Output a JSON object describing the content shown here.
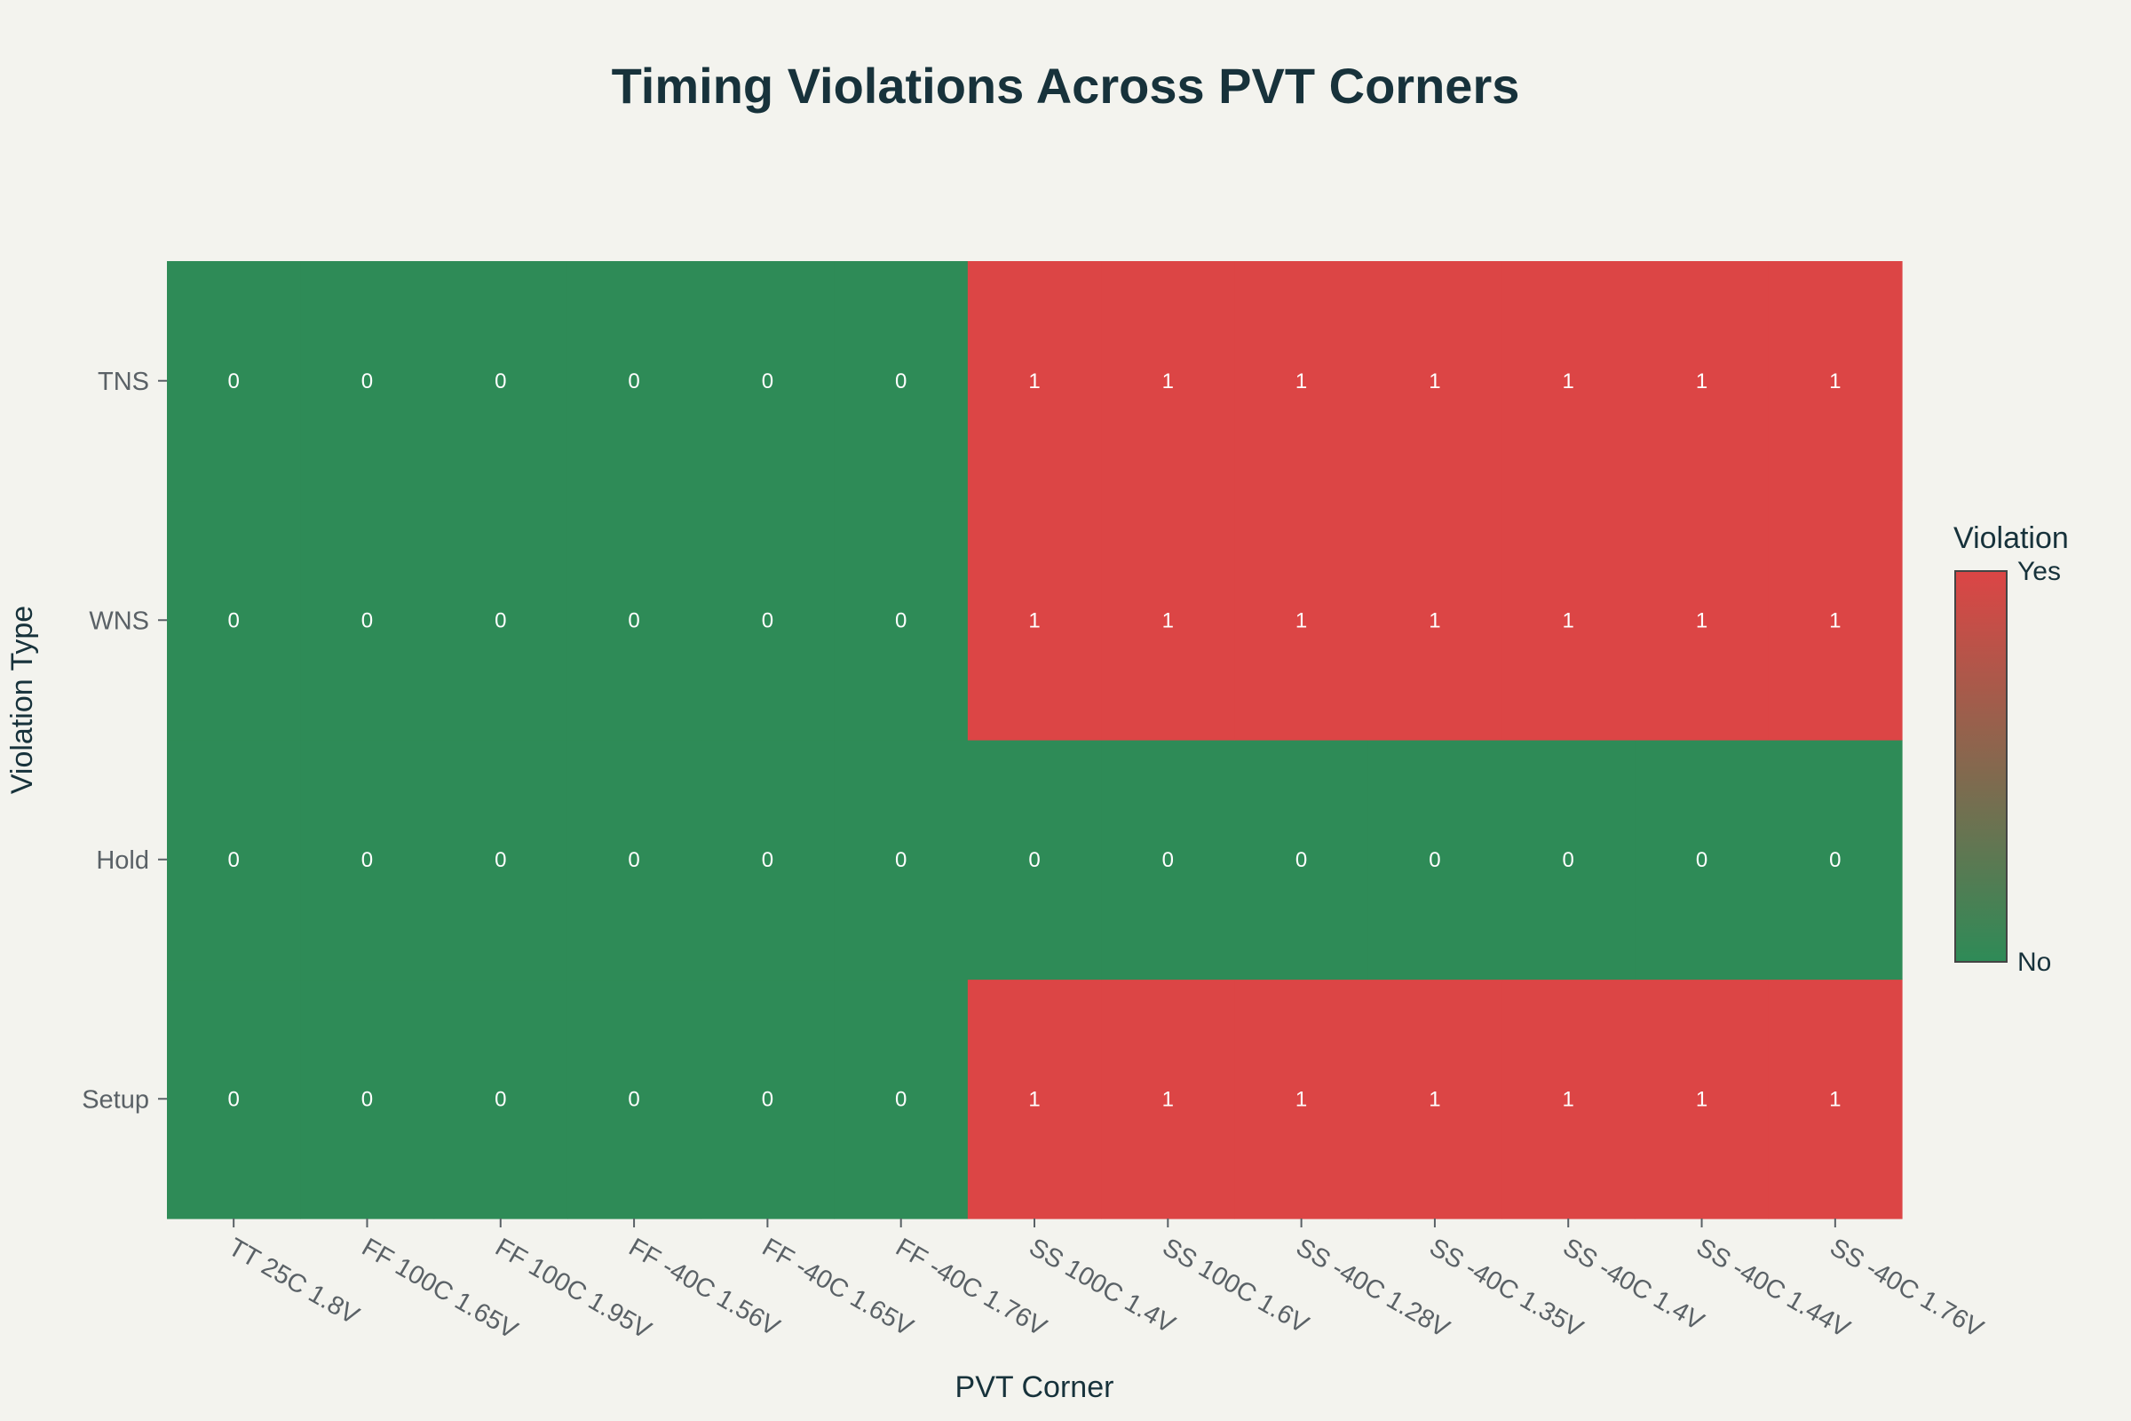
{
  "chart_data": {
    "type": "heatmap",
    "title": "Timing Violations Across PVT Corners",
    "xlabel": "PVT Corner",
    "ylabel": "Violation Type",
    "x": [
      "TT 25C 1.8V",
      "FF 100C 1.65V",
      "FF 100C 1.95V",
      "FF -40C 1.56V",
      "FF -40C 1.65V",
      "FF -40C 1.76V",
      "SS 100C 1.4V",
      "SS 100C 1.6V",
      "SS -40C 1.28V",
      "SS -40C 1.35V",
      "SS -40C 1.4V",
      "SS -40C 1.44V",
      "SS -40C 1.76V"
    ],
    "y": [
      "Setup",
      "Hold",
      "WNS",
      "TNS"
    ],
    "z": [
      [
        0,
        0,
        0,
        0,
        0,
        0,
        1,
        1,
        1,
        1,
        1,
        1,
        1
      ],
      [
        0,
        0,
        0,
        0,
        0,
        0,
        0,
        0,
        0,
        0,
        0,
        0,
        0
      ],
      [
        0,
        0,
        0,
        0,
        0,
        0,
        1,
        1,
        1,
        1,
        1,
        1,
        1
      ],
      [
        0,
        0,
        0,
        0,
        0,
        0,
        1,
        1,
        1,
        1,
        1,
        1,
        1
      ]
    ],
    "zlim": [
      0,
      1
    ],
    "colorscale": [
      "#2e8b57",
      "#dc4545"
    ],
    "colorbar": {
      "title": "Violation",
      "ticks": [
        "No",
        "Yes"
      ]
    },
    "grid": false,
    "legend": "right"
  }
}
